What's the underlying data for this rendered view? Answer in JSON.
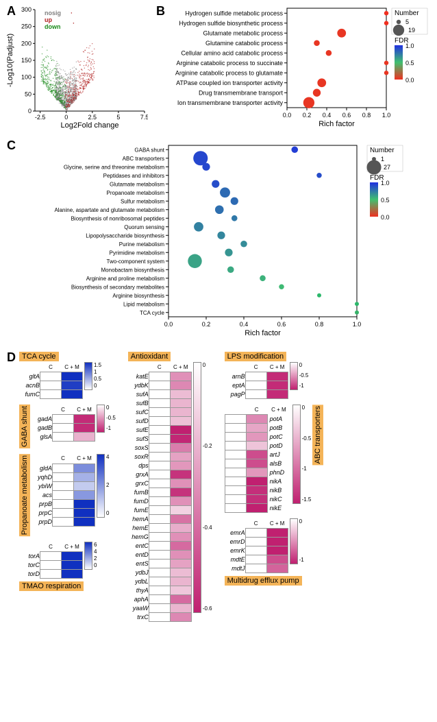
{
  "panelA": {
    "label": "A",
    "ylab": "-Log10(Padjust)",
    "xlab": "Log2Fold change",
    "legend": {
      "nosig": "nosig",
      "up": "up",
      "down": "down"
    },
    "legend_colors": {
      "nosig": "#808080",
      "up": "#b02020",
      "down": "#1a8a1a"
    },
    "xlim": [
      -3,
      7.5
    ],
    "xticks": [
      -2.5,
      0,
      2.5,
      5.0,
      7.5
    ],
    "ylim": [
      0,
      300
    ],
    "yticks": [
      0,
      50,
      100,
      150,
      200,
      250,
      300
    ],
    "point_r": 0.75
  },
  "panelB": {
    "label": "B",
    "xlab": "Rich factor",
    "xlim": [
      0,
      1
    ],
    "xticks": [
      0.0,
      0.2,
      0.4,
      0.6,
      0.8,
      1.0
    ],
    "categories": [
      "Hydrogen sulfide metabolic process",
      "Hydrogen sulfide biosynthetic process",
      "Glutamate metabolic process",
      "Glutamine catabolic process",
      "Cellular amino acid catabolic process",
      "Arginine catabolic process to succinate",
      "Arginine catabolic process to glutamate",
      "ATPase coupled ion transporter activity",
      "Drug transmembrane transport",
      "Ion transmembrane transporter activity"
    ],
    "points": [
      {
        "x": 1.0,
        "n": 5,
        "fdr": 0.0
      },
      {
        "x": 1.0,
        "n": 5,
        "fdr": 0.0
      },
      {
        "x": 0.55,
        "n": 14,
        "fdr": 0.02
      },
      {
        "x": 0.3,
        "n": 8,
        "fdr": 0.02
      },
      {
        "x": 0.42,
        "n": 8,
        "fdr": 0.02
      },
      {
        "x": 1.0,
        "n": 5,
        "fdr": 0.02
      },
      {
        "x": 1.0,
        "n": 5,
        "fdr": 0.02
      },
      {
        "x": 0.35,
        "n": 14,
        "fdr": 0.02
      },
      {
        "x": 0.3,
        "n": 12,
        "fdr": 0.02
      },
      {
        "x": 0.22,
        "n": 19,
        "fdr": 0.02
      }
    ],
    "size_legend": {
      "title": "Number",
      "min": 5,
      "max": 19
    },
    "fdr_legend": {
      "title": "FDR",
      "vals": [
        1.0,
        0.5,
        0.0
      ],
      "colors": [
        "#3030f0",
        "#10c070",
        "#f03020"
      ]
    }
  },
  "panelC": {
    "label": "C",
    "xlab": "Rich factor",
    "xlim": [
      0,
      1
    ],
    "xticks": [
      0.0,
      0.2,
      0.4,
      0.6,
      0.8,
      1.0
    ],
    "categories": [
      "GABA shunt",
      "ABC transporters",
      "Glycine, serine and threonine metabolism",
      "Peptidases and inhibitors",
      "Glutamate metabolism",
      "Propanoate metabolism",
      "Sulfur metabolism",
      "Alanine, aspartate and glutamate metabolism",
      "Biosynthesis of nonribosomal peptides",
      "Quorum sensing",
      "Lipopolysaccharide biosynthesis",
      "Purine metabolism",
      "Pyrimidine metabolism",
      "Two-component system",
      "Monobactam biosynthesis",
      "Arginine and proline metabolism",
      "Biosynthesis of secondary metabolites",
      "Arginine biosynthesis",
      "Lipid metabolism",
      "TCA cycle"
    ],
    "points": [
      {
        "x": 0.67,
        "n": 4,
        "fdr": 0.95
      },
      {
        "x": 0.17,
        "n": 27,
        "fdr": 0.92
      },
      {
        "x": 0.2,
        "n": 6,
        "fdr": 0.92
      },
      {
        "x": 0.8,
        "n": 2,
        "fdr": 0.9
      },
      {
        "x": 0.25,
        "n": 6,
        "fdr": 0.9
      },
      {
        "x": 0.3,
        "n": 12,
        "fdr": 0.8
      },
      {
        "x": 0.35,
        "n": 6,
        "fdr": 0.8
      },
      {
        "x": 0.27,
        "n": 8,
        "fdr": 0.78
      },
      {
        "x": 0.35,
        "n": 3,
        "fdr": 0.75
      },
      {
        "x": 0.16,
        "n": 10,
        "fdr": 0.72
      },
      {
        "x": 0.28,
        "n": 6,
        "fdr": 0.7
      },
      {
        "x": 0.4,
        "n": 4,
        "fdr": 0.68
      },
      {
        "x": 0.32,
        "n": 6,
        "fdr": 0.65
      },
      {
        "x": 0.14,
        "n": 25,
        "fdr": 0.6
      },
      {
        "x": 0.33,
        "n": 4,
        "fdr": 0.58
      },
      {
        "x": 0.5,
        "n": 3,
        "fdr": 0.55
      },
      {
        "x": 0.6,
        "n": 2,
        "fdr": 0.52
      },
      {
        "x": 0.8,
        "n": 1,
        "fdr": 0.47
      },
      {
        "x": 1.0,
        "n": 1,
        "fdr": 0.47
      },
      {
        "x": 1.0,
        "n": 1,
        "fdr": 0.45
      }
    ],
    "size_legend": {
      "title": "Number",
      "min": 1,
      "max": 27
    },
    "fdr_legend": {
      "title": "FDR",
      "vals": [
        1.0,
        0.5,
        0.0
      ],
      "colors": [
        "#5040e0",
        "#20d070",
        "#f03020"
      ]
    }
  },
  "panelD": {
    "label": "D",
    "col_heads": [
      "C",
      "C + M"
    ],
    "blue": {
      "low": "#ffffff",
      "high": "#1030c0"
    },
    "pink": {
      "low": "#ffffff",
      "high": "#c02070"
    },
    "groups": [
      {
        "title": "TCA cycle",
        "side": "top",
        "pal": "blue",
        "scale": [
          0,
          0.5,
          1.0,
          1.5
        ],
        "genes": [
          "gltA",
          "acnB",
          "fumC"
        ],
        "vals": [
          [
            0,
            1.5
          ],
          [
            0,
            1.4
          ],
          [
            0,
            1.5
          ]
        ]
      },
      {
        "title": "GABA shunt",
        "side": "left",
        "pal": "pink",
        "scale": [
          -1,
          -0.5,
          0
        ],
        "genes": [
          "gadA",
          "gadB",
          "glsA"
        ],
        "vals": [
          [
            0,
            -0.95
          ],
          [
            0,
            -0.95
          ],
          [
            0,
            -0.35
          ]
        ]
      },
      {
        "title": "Propanoate metabolism",
        "side": "left",
        "pal": "blue",
        "scale": [
          0,
          2,
          4
        ],
        "genes": [
          "gldA",
          "yqhD",
          "ybiW",
          "acs",
          "prpB",
          "prpC",
          "prpD"
        ],
        "vals": [
          [
            0,
            2.2
          ],
          [
            0,
            1.5
          ],
          [
            0,
            1.0
          ],
          [
            0,
            2.0
          ],
          [
            0,
            4.3
          ],
          [
            0,
            4.5
          ],
          [
            0,
            4.5
          ]
        ]
      },
      {
        "title": "TMAO respiration",
        "side": "bottom",
        "pal": "blue",
        "scale": [
          0,
          2,
          4,
          6
        ],
        "genes": [
          "torA",
          "torC",
          "torD"
        ],
        "vals": [
          [
            0,
            6.5
          ],
          [
            0,
            6.0
          ],
          [
            0,
            6.5
          ]
        ]
      },
      {
        "title": "Antioxidant",
        "side": "top",
        "pal": "pink",
        "scale": [
          -0.6,
          -0.4,
          -0.2,
          0
        ],
        "genes": [
          "katE",
          "ydbK",
          "sufA",
          "sufB",
          "sufC",
          "sufD",
          "sufE",
          "sufS",
          "soxS",
          "soxR",
          "dps",
          "grxA",
          "grxC",
          "fumB",
          "fumD",
          "fumE",
          "hemA",
          "hemE",
          "hemG",
          "entC",
          "entD",
          "entS",
          "ydbJ",
          "ydbL",
          "thyA",
          "aphA",
          "yaaW",
          "trxC"
        ],
        "vals": [
          [
            0,
            -0.3
          ],
          [
            0,
            -0.32
          ],
          [
            0,
            -0.18
          ],
          [
            0,
            -0.2
          ],
          [
            0,
            -0.2
          ],
          [
            0,
            -0.17
          ],
          [
            0,
            -0.6
          ],
          [
            0,
            -0.58
          ],
          [
            0,
            -0.35
          ],
          [
            0,
            -0.25
          ],
          [
            0,
            -0.28
          ],
          [
            0,
            -0.55
          ],
          [
            0,
            -0.3
          ],
          [
            0,
            -0.55
          ],
          [
            0,
            -0.3
          ],
          [
            0,
            -0.12
          ],
          [
            0,
            -0.38
          ],
          [
            0,
            -0.22
          ],
          [
            0,
            -0.3
          ],
          [
            0,
            -0.4
          ],
          [
            0,
            -0.3
          ],
          [
            0,
            -0.25
          ],
          [
            0,
            -0.18
          ],
          [
            0,
            -0.2
          ],
          [
            0,
            -0.15
          ],
          [
            0,
            -0.4
          ],
          [
            0,
            -0.2
          ],
          [
            0,
            -0.32
          ]
        ]
      },
      {
        "title": "LPS modification",
        "side": "top",
        "pal": "pink",
        "scale": [
          -1,
          -0.5,
          0
        ],
        "genes": [
          "arnB",
          "eptA",
          "pagP"
        ],
        "vals": [
          [
            0,
            -0.95
          ],
          [
            0,
            -0.95
          ],
          [
            0,
            -0.95
          ]
        ]
      },
      {
        "title": "ABC transporters",
        "side": "right",
        "pal": "pink",
        "scale": [
          -1.5,
          -1,
          -0.5,
          0
        ],
        "genes": [
          "potA",
          "potB",
          "potC",
          "potD",
          "artJ",
          "alsB",
          "phnD",
          "nikA",
          "nikB",
          "nikC",
          "nikE"
        ],
        "vals": [
          [
            0,
            -0.8
          ],
          [
            0,
            -0.6
          ],
          [
            0,
            -0.7
          ],
          [
            0,
            -0.4
          ],
          [
            0,
            -1.2
          ],
          [
            0,
            -1.2
          ],
          [
            0,
            -0.7
          ],
          [
            0,
            -1.5
          ],
          [
            0,
            -1.4
          ],
          [
            0,
            -1.4
          ],
          [
            0,
            -1.5
          ]
        ]
      },
      {
        "title": "Multidrug efflux pump",
        "side": "bottom",
        "pal": "pink",
        "scale": [
          -1,
          0
        ],
        "genes": [
          "emrA",
          "emrD",
          "emrK",
          "mdtE",
          "mdtJ"
        ],
        "vals": [
          [
            0,
            -1.0
          ],
          [
            0,
            -1.0
          ],
          [
            0,
            -1.0
          ],
          [
            0,
            -0.8
          ],
          [
            0,
            -0.7
          ]
        ]
      }
    ]
  }
}
